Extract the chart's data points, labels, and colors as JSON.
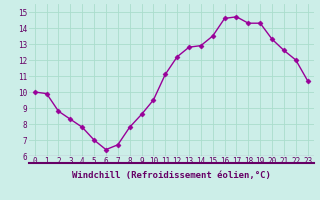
{
  "x": [
    0,
    1,
    2,
    3,
    4,
    5,
    6,
    7,
    8,
    9,
    10,
    11,
    12,
    13,
    14,
    15,
    16,
    17,
    18,
    19,
    20,
    21,
    22,
    23
  ],
  "y": [
    10.0,
    9.9,
    8.8,
    8.3,
    7.8,
    7.0,
    6.4,
    6.7,
    7.8,
    8.6,
    9.5,
    11.1,
    12.2,
    12.8,
    12.9,
    13.5,
    14.6,
    14.7,
    14.3,
    14.3,
    13.3,
    12.6,
    12.0,
    10.7
  ],
  "line_color": "#990099",
  "marker": "D",
  "markersize": 2.5,
  "linewidth": 1.0,
  "xlabel": "Windchill (Refroidissement éolien,°C)",
  "xlim": [
    -0.5,
    23.5
  ],
  "ylim": [
    6,
    15.5
  ],
  "yticks": [
    6,
    7,
    8,
    9,
    10,
    11,
    12,
    13,
    14,
    15
  ],
  "xticks": [
    0,
    1,
    2,
    3,
    4,
    5,
    6,
    7,
    8,
    9,
    10,
    11,
    12,
    13,
    14,
    15,
    16,
    17,
    18,
    19,
    20,
    21,
    22,
    23
  ],
  "bg_color": "#cceee8",
  "grid_color": "#aaddcc",
  "line_purple": "#660066",
  "tick_label_color": "#660066",
  "xlabel_color": "#660066",
  "tick_font_size": 5.5,
  "xlabel_font_size": 6.5
}
